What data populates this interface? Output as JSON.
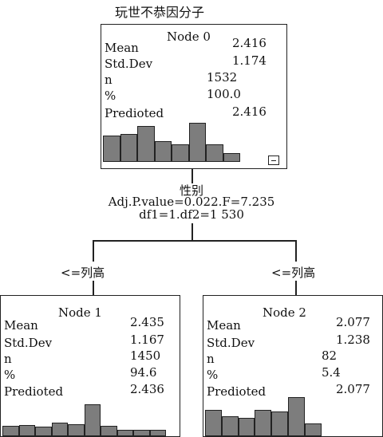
{
  "root_label": "玩世不恭因分子",
  "stat_labels": [
    "Mean",
    "Std.Dev",
    "n",
    "%",
    "Predioted"
  ],
  "nodes": [
    {
      "title": "Node 0",
      "values": [
        "2.416",
        "1.174",
        "1532",
        "100.0",
        "2.416"
      ],
      "histogram": [
        0.64,
        0.67,
        0.86,
        0.5,
        0.43,
        0.95,
        0.43,
        0.21
      ]
    },
    {
      "title": "Node 1",
      "values": [
        "2.435",
        "1.167",
        "1450",
        "94.6",
        "2.436"
      ],
      "histogram": [
        0.28,
        0.3,
        0.24,
        0.36,
        0.32,
        0.83,
        0.28,
        0.16,
        0.16,
        0.16
      ]
    },
    {
      "title": "Node 2",
      "values": [
        "2.077",
        "1.238",
        "82",
        "5.4",
        "2.077"
      ],
      "histogram": [
        0.63,
        0.48,
        0.45,
        0.64,
        0.59,
        0.94,
        0.31
      ]
    }
  ],
  "split": {
    "variable": "性别",
    "stats_line1": "Adj.P.value=0.022.F=7.235",
    "stats_line2": "df1=1.df2=1 530"
  },
  "branches": [
    "<=列高",
    "<=列高"
  ],
  "colors": {
    "bar_fill": "#7d7d7d",
    "border": "#222222"
  }
}
